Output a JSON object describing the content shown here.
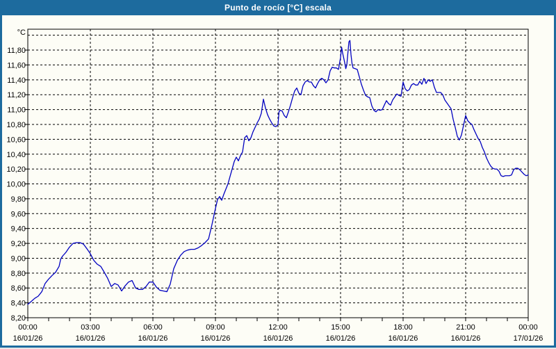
{
  "window": {
    "title": "Punto de rocío [°C] escala"
  },
  "colors": {
    "titlebar": "#1d6b9e",
    "frame": "#1d6b9e",
    "background": "#fdfdf6",
    "plot_border": "#000000",
    "grid": "#000000",
    "line": "#0000c0",
    "text": "#000000"
  },
  "chart_data": {
    "type": "line",
    "title": "Punto de rocío [°C] escala",
    "y_unit_label": "°C",
    "ylabel": "",
    "xlabel": "",
    "ylim": [
      8.2,
      12.081
    ],
    "xlim": [
      0,
      24
    ],
    "grid": "dashed",
    "decimal_separator": ",",
    "y_ticks": [
      {
        "v": 8.2,
        "label": "8,20"
      },
      {
        "v": 8.4,
        "label": "8,40"
      },
      {
        "v": 8.6,
        "label": "8,60"
      },
      {
        "v": 8.8,
        "label": "8,80"
      },
      {
        "v": 9.0,
        "label": "9,00"
      },
      {
        "v": 9.2,
        "label": "9,20"
      },
      {
        "v": 9.4,
        "label": "9,40"
      },
      {
        "v": 9.6,
        "label": "9,60"
      },
      {
        "v": 9.8,
        "label": "9,80"
      },
      {
        "v": 10.0,
        "label": "10,00"
      },
      {
        "v": 10.2,
        "label": "10,20"
      },
      {
        "v": 10.4,
        "label": "10,40"
      },
      {
        "v": 10.6,
        "label": "10,60"
      },
      {
        "v": 10.8,
        "label": "10,80"
      },
      {
        "v": 11.0,
        "label": "11,00"
      },
      {
        "v": 11.2,
        "label": "11,20"
      },
      {
        "v": 11.4,
        "label": "11,40"
      },
      {
        "v": 11.6,
        "label": "11,60"
      },
      {
        "v": 11.8,
        "label": "11,80"
      }
    ],
    "extra_unlabeled_gridlines": [
      12.0
    ],
    "x_ticks": [
      {
        "h": 0,
        "time": "00:00",
        "date": "16/01/26"
      },
      {
        "h": 3,
        "time": "03:00",
        "date": "16/01/26"
      },
      {
        "h": 6,
        "time": "06:00",
        "date": "16/01/26"
      },
      {
        "h": 9,
        "time": "09:00",
        "date": "16/01/26"
      },
      {
        "h": 12,
        "time": "12:00",
        "date": "16/01/26"
      },
      {
        "h": 15,
        "time": "15:00",
        "date": "16/01/26"
      },
      {
        "h": 18,
        "time": "18:00",
        "date": "16/01/26"
      },
      {
        "h": 21,
        "time": "21:00",
        "date": "16/01/26"
      },
      {
        "h": 24,
        "time": "00:00",
        "date": "17/01/26"
      }
    ],
    "x_minor_tick_every_hours": 1,
    "legend": "none",
    "series": [
      {
        "name": "Punto de rocío",
        "points": [
          [
            0,
            8.38
          ],
          [
            0.17,
            8.42
          ],
          [
            0.33,
            8.46
          ],
          [
            0.5,
            8.49
          ],
          [
            0.67,
            8.55
          ],
          [
            0.83,
            8.66
          ],
          [
            1,
            8.72
          ],
          [
            1.17,
            8.77
          ],
          [
            1.33,
            8.81
          ],
          [
            1.5,
            8.89
          ],
          [
            1.58,
            8.99
          ],
          [
            1.67,
            9.03
          ],
          [
            1.83,
            9.08
          ],
          [
            2,
            9.15
          ],
          [
            2.17,
            9.2
          ],
          [
            2.33,
            9.21
          ],
          [
            2.5,
            9.21
          ],
          [
            2.67,
            9.19
          ],
          [
            2.83,
            9.13
          ],
          [
            3,
            9.06
          ],
          [
            3.17,
            8.97
          ],
          [
            3.33,
            8.92
          ],
          [
            3.5,
            8.89
          ],
          [
            3.67,
            8.81
          ],
          [
            3.83,
            8.73
          ],
          [
            4,
            8.62
          ],
          [
            4.17,
            8.66
          ],
          [
            4.33,
            8.64
          ],
          [
            4.5,
            8.56
          ],
          [
            4.67,
            8.63
          ],
          [
            4.83,
            8.68
          ],
          [
            5,
            8.7
          ],
          [
            5.17,
            8.6
          ],
          [
            5.33,
            8.58
          ],
          [
            5.5,
            8.58
          ],
          [
            5.67,
            8.62
          ],
          [
            5.83,
            8.68
          ],
          [
            6,
            8.68
          ],
          [
            6.17,
            8.61
          ],
          [
            6.33,
            8.57
          ],
          [
            6.5,
            8.56
          ],
          [
            6.67,
            8.55
          ],
          [
            6.83,
            8.65
          ],
          [
            7,
            8.86
          ],
          [
            7.17,
            8.97
          ],
          [
            7.33,
            9.04
          ],
          [
            7.5,
            9.09
          ],
          [
            7.67,
            9.11
          ],
          [
            7.83,
            9.12
          ],
          [
            8,
            9.12
          ],
          [
            8.17,
            9.14
          ],
          [
            8.33,
            9.17
          ],
          [
            8.5,
            9.21
          ],
          [
            8.67,
            9.26
          ],
          [
            8.83,
            9.45
          ],
          [
            9,
            9.67
          ],
          [
            9.1,
            9.79
          ],
          [
            9.2,
            9.83
          ],
          [
            9.3,
            9.78
          ],
          [
            9.4,
            9.86
          ],
          [
            9.5,
            9.93
          ],
          [
            9.6,
            10
          ],
          [
            9.7,
            10.1
          ],
          [
            9.8,
            10.2
          ],
          [
            9.9,
            10.3
          ],
          [
            10,
            10.36
          ],
          [
            10.1,
            10.31
          ],
          [
            10.2,
            10.38
          ],
          [
            10.3,
            10.43
          ],
          [
            10.4,
            10.62
          ],
          [
            10.5,
            10.65
          ],
          [
            10.6,
            10.58
          ],
          [
            10.7,
            10.62
          ],
          [
            10.8,
            10.7
          ],
          [
            10.9,
            10.76
          ],
          [
            11,
            10.82
          ],
          [
            11.1,
            10.87
          ],
          [
            11.2,
            10.95
          ],
          [
            11.3,
            11.14
          ],
          [
            11.4,
            11.02
          ],
          [
            11.5,
            10.93
          ],
          [
            11.6,
            10.87
          ],
          [
            11.7,
            10.82
          ],
          [
            11.8,
            10.78
          ],
          [
            11.9,
            10.77
          ],
          [
            12,
            10.8
          ],
          [
            12.05,
            10.97
          ],
          [
            12.1,
            10.99
          ],
          [
            12.2,
            10.98
          ],
          [
            12.3,
            10.92
          ],
          [
            12.4,
            10.89
          ],
          [
            12.5,
            10.97
          ],
          [
            12.6,
            11.06
          ],
          [
            12.7,
            11.16
          ],
          [
            12.8,
            11.25
          ],
          [
            12.9,
            11.29
          ],
          [
            13,
            11.22
          ],
          [
            13.1,
            11.2
          ],
          [
            13.2,
            11.32
          ],
          [
            13.3,
            11.37
          ],
          [
            13.4,
            11.39
          ],
          [
            13.5,
            11.37
          ],
          [
            13.6,
            11.37
          ],
          [
            13.7,
            11.32
          ],
          [
            13.8,
            11.29
          ],
          [
            13.9,
            11.35
          ],
          [
            14,
            11.4
          ],
          [
            14.1,
            11.42
          ],
          [
            14.2,
            11.4
          ],
          [
            14.3,
            11.36
          ],
          [
            14.4,
            11.4
          ],
          [
            14.5,
            11.52
          ],
          [
            14.6,
            11.57
          ],
          [
            14.7,
            11.56
          ],
          [
            14.8,
            11.56
          ],
          [
            14.9,
            11.54
          ],
          [
            15,
            11.7
          ],
          [
            15.05,
            11.84
          ],
          [
            15.1,
            11.76
          ],
          [
            15.2,
            11.63
          ],
          [
            15.25,
            11.55
          ],
          [
            15.3,
            11.6
          ],
          [
            15.4,
            11.91
          ],
          [
            15.45,
            11.93
          ],
          [
            15.5,
            11.74
          ],
          [
            15.55,
            11.62
          ],
          [
            15.6,
            11.56
          ],
          [
            15.7,
            11.55
          ],
          [
            15.8,
            11.54
          ],
          [
            15.9,
            11.44
          ],
          [
            16,
            11.34
          ],
          [
            16.1,
            11.26
          ],
          [
            16.2,
            11.19
          ],
          [
            16.3,
            11.17
          ],
          [
            16.4,
            11.16
          ],
          [
            16.5,
            11.05
          ],
          [
            16.6,
            10.99
          ],
          [
            16.7,
            10.97
          ],
          [
            16.8,
            11
          ],
          [
            16.9,
            10.99
          ],
          [
            17,
            11
          ],
          [
            17.1,
            11.06
          ],
          [
            17.2,
            11.12
          ],
          [
            17.3,
            11.08
          ],
          [
            17.4,
            11.06
          ],
          [
            17.5,
            11.13
          ],
          [
            17.6,
            11.17
          ],
          [
            17.7,
            11.21
          ],
          [
            17.8,
            11.19
          ],
          [
            17.9,
            11.18
          ],
          [
            18,
            11.37
          ],
          [
            18.1,
            11.28
          ],
          [
            18.2,
            11.25
          ],
          [
            18.3,
            11.27
          ],
          [
            18.4,
            11.33
          ],
          [
            18.5,
            11.35
          ],
          [
            18.6,
            11.33
          ],
          [
            18.7,
            11.33
          ],
          [
            18.8,
            11.38
          ],
          [
            18.9,
            11.34
          ],
          [
            19,
            11.42
          ],
          [
            19.1,
            11.35
          ],
          [
            19.2,
            11.4
          ],
          [
            19.3,
            11.38
          ],
          [
            19.4,
            11.4
          ],
          [
            19.5,
            11.3
          ],
          [
            19.6,
            11.23
          ],
          [
            19.7,
            11.23
          ],
          [
            19.8,
            11.23
          ],
          [
            19.9,
            11.2
          ],
          [
            20,
            11.13
          ],
          [
            20.1,
            11.09
          ],
          [
            20.2,
            11.05
          ],
          [
            20.3,
            11.01
          ],
          [
            20.4,
            10.87
          ],
          [
            20.5,
            10.76
          ],
          [
            20.6,
            10.64
          ],
          [
            20.7,
            10.59
          ],
          [
            20.8,
            10.66
          ],
          [
            20.9,
            10.79
          ],
          [
            21,
            10.92
          ],
          [
            21.1,
            10.85
          ],
          [
            21.2,
            10.82
          ],
          [
            21.3,
            10.8
          ],
          [
            21.4,
            10.73
          ],
          [
            21.5,
            10.67
          ],
          [
            21.6,
            10.61
          ],
          [
            21.7,
            10.57
          ],
          [
            21.8,
            10.49
          ],
          [
            21.9,
            10.43
          ],
          [
            22,
            10.35
          ],
          [
            22.1,
            10.29
          ],
          [
            22.2,
            10.24
          ],
          [
            22.3,
            10.21
          ],
          [
            22.4,
            10.2
          ],
          [
            22.5,
            10.2
          ],
          [
            22.6,
            10.17
          ],
          [
            22.7,
            10.11
          ],
          [
            22.8,
            10.1
          ],
          [
            22.9,
            10.11
          ],
          [
            23,
            10.11
          ],
          [
            23.1,
            10.11
          ],
          [
            23.2,
            10.12
          ],
          [
            23.3,
            10.19
          ],
          [
            23.4,
            10.21
          ],
          [
            23.5,
            10.21
          ],
          [
            23.6,
            10.19
          ],
          [
            23.7,
            10.16
          ],
          [
            23.8,
            10.13
          ],
          [
            23.9,
            10.11
          ],
          [
            24,
            10.12
          ]
        ]
      }
    ]
  }
}
